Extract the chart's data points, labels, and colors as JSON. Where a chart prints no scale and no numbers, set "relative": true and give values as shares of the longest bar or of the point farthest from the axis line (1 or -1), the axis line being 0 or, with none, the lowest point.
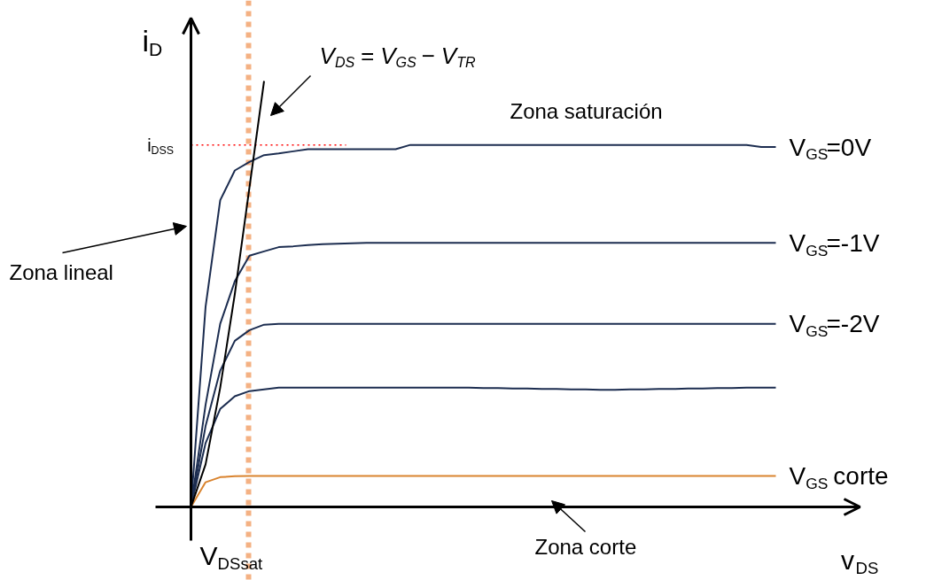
{
  "chart_data": {
    "type": "line",
    "relative": true,
    "xlabel": "v$_{DS}$",
    "ylabel": "i$_{D}$",
    "grid": false,
    "line_style": "solid",
    "marker": "none",
    "categories": [
      null,
      null,
      null,
      null,
      null,
      null,
      null,
      null,
      null,
      null,
      null,
      null,
      null,
      null,
      null,
      null,
      null,
      null,
      null,
      null,
      null,
      null,
      null,
      null,
      null,
      null,
      null,
      null,
      null,
      null,
      null,
      null,
      null,
      null,
      null,
      null,
      null,
      null,
      null,
      null,
      null
    ],
    "series": [
      {
        "name": "V$_{GS}$=0V",
        "color": "#1c2d50",
        "values": [
          0,
          0.47,
          0.72,
          0.79,
          0.81,
          0.826,
          0.83,
          0.835,
          0.84,
          0.84,
          0.84,
          0.84,
          0.84,
          0.84,
          0.84,
          0.85,
          0.85,
          0.85,
          0.85,
          0.85,
          0.85,
          0.85,
          0.85,
          0.85,
          0.85,
          0.85,
          0.85,
          0.85,
          0.85,
          0.85,
          0.85,
          0.85,
          0.85,
          0.85,
          0.85,
          0.85,
          0.85,
          0.85,
          0.85,
          0.845,
          0.845
        ]
      },
      {
        "name": "V$_{GS}$=-1V",
        "color": "#1c2d50",
        "values": [
          0,
          0.24,
          0.43,
          0.53,
          0.59,
          0.6,
          0.61,
          0.612,
          0.615,
          0.617,
          0.618,
          0.619,
          0.62,
          0.62,
          0.62,
          0.62,
          0.62,
          0.62,
          0.62,
          0.62,
          0.62,
          0.62,
          0.62,
          0.62,
          0.62,
          0.62,
          0.62,
          0.62,
          0.62,
          0.62,
          0.62,
          0.62,
          0.62,
          0.62,
          0.62,
          0.62,
          0.62,
          0.62,
          0.62,
          0.62,
          0.62
        ]
      },
      {
        "name": "V$_{GS}$=-2V",
        "color": "#1c2d50",
        "values": [
          0,
          0.19,
          0.32,
          0.39,
          0.415,
          0.428,
          0.43,
          0.43,
          0.43,
          0.43,
          0.43,
          0.43,
          0.43,
          0.43,
          0.43,
          0.43,
          0.43,
          0.43,
          0.43,
          0.43,
          0.43,
          0.43,
          0.43,
          0.43,
          0.43,
          0.43,
          0.43,
          0.43,
          0.43,
          0.43,
          0.43,
          0.43,
          0.43,
          0.43,
          0.43,
          0.43,
          0.43,
          0.43,
          0.43,
          0.43,
          0.43
        ]
      },
      {
        "color": "#1c2d50",
        "values": [
          0,
          0.15,
          0.23,
          0.26,
          0.272,
          0.276,
          0.28,
          0.28,
          0.28,
          0.28,
          0.28,
          0.28,
          0.28,
          0.28,
          0.28,
          0.28,
          0.28,
          0.28,
          0.28,
          0.28,
          0.279,
          0.279,
          0.278,
          0.278,
          0.277,
          0.277,
          0.276,
          0.276,
          0.275,
          0.275,
          0.276,
          0.276,
          0.277,
          0.277,
          0.278,
          0.278,
          0.279,
          0.279,
          0.28,
          0.28,
          0.28
        ]
      },
      {
        "name": "V$_{GS}$ corte",
        "color": "#d9832e",
        "values": [
          0,
          0.058,
          0.07,
          0.072,
          0.073,
          0.073,
          0.073,
          0.073,
          0.073,
          0.073,
          0.073,
          0.073,
          0.073,
          0.073,
          0.073,
          0.073,
          0.073,
          0.073,
          0.073,
          0.073,
          0.073,
          0.073,
          0.073,
          0.073,
          0.073,
          0.073,
          0.073,
          0.073,
          0.073,
          0.073,
          0.073,
          0.073,
          0.073,
          0.073,
          0.073,
          0.073,
          0.073,
          0.073,
          0.073,
          0.073,
          0.073
        ]
      },
      {
        "color": "#000000",
        "values": [
          0,
          0.1,
          0.28,
          0.5,
          0.75,
          1.0,
          null,
          null,
          null,
          null,
          null,
          null,
          null,
          null,
          null,
          null,
          null,
          null,
          null,
          null,
          null,
          null,
          null,
          null,
          null,
          null,
          null,
          null,
          null,
          null,
          null,
          null,
          null,
          null,
          null,
          null,
          null,
          null,
          null,
          null,
          null
        ]
      }
    ],
    "ref_lines": [
      {
        "axis": "y",
        "value": 0.85,
        "label": "i$_{DSS}$",
        "color": "#ff0000",
        "line_style": "dotted"
      }
    ],
    "annotations": [
      "V$_{DS}$ = V$_{GS}$ − V$_{TR}$",
      "Zona saturación",
      "Zona lineal",
      "Zona corte",
      "V$_{DSsat}$"
    ]
  }
}
